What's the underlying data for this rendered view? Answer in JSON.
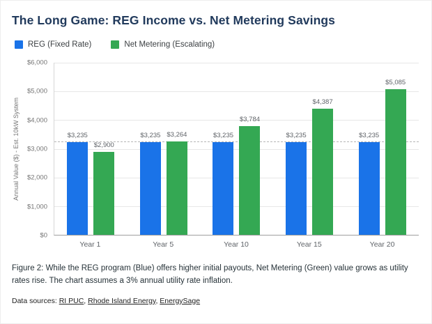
{
  "page": {
    "title": "The Long Game: REG Income vs. Net Metering Savings",
    "caption": "Figure 2: While the REG program (Blue) offers higher initial payouts, Net Metering (Green) value grows as utility rates rise. The chart assumes a 3% annual utility rate inflation.",
    "sources": {
      "prefix": "Data sources: ",
      "links": [
        "RI PUC",
        "Rhode Island Energy",
        "EnergySage"
      ],
      "separator": ", "
    }
  },
  "chart_data": {
    "type": "bar",
    "title": "The Long Game: REG Income vs. Net Metering Savings",
    "categories": [
      "Year 1",
      "Year 5",
      "Year 10",
      "Year 15",
      "Year 20"
    ],
    "series": [
      {
        "name": "REG (Fixed Rate)",
        "color": "#1a73e8",
        "values": [
          3235,
          3235,
          3235,
          3235,
          3235
        ]
      },
      {
        "name": "Net Metering (Escalating)",
        "color": "#34a853",
        "values": [
          2900,
          3264,
          3784,
          4387,
          5085
        ]
      }
    ],
    "ylabel": "Annual Value ($) - Est. 10kW System",
    "xlabel": "",
    "ylim": [
      0,
      6000
    ],
    "yticks": [
      "$6,000",
      "$5,000",
      "$4,000",
      "$3,000",
      "$2,000",
      "$1,000",
      "$0"
    ],
    "reference_line": 3235,
    "grid": true,
    "legend_position": "top-left"
  }
}
